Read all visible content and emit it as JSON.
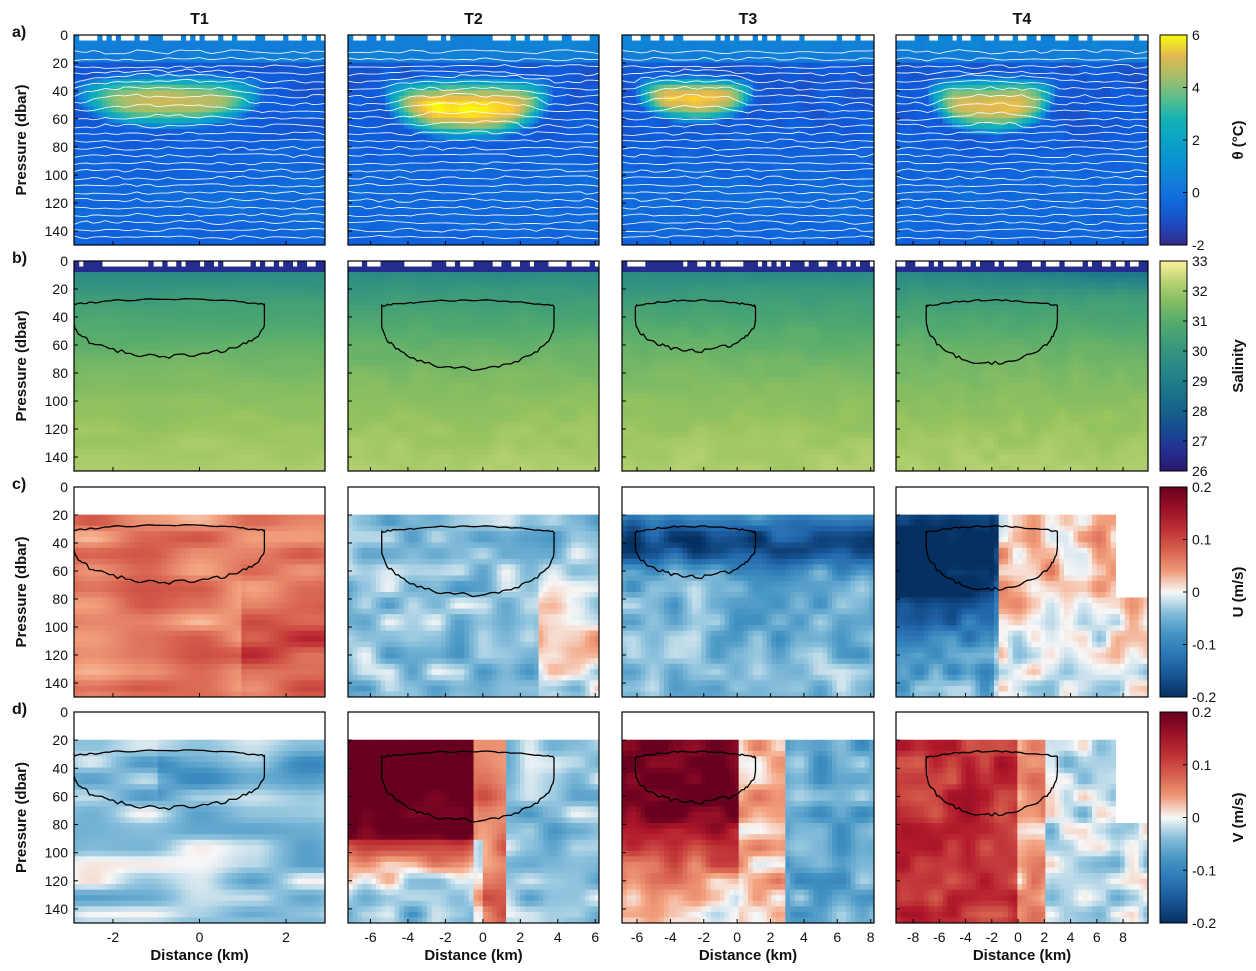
{
  "chart_data": {
    "type": "heatmap",
    "columns": [
      {
        "title": "T1",
        "xticks": [
          -2,
          0,
          2
        ],
        "xlim": [
          -2.9,
          2.9
        ]
      },
      {
        "title": "T2",
        "xticks": [
          -6,
          -4,
          -2,
          0,
          2,
          4,
          6
        ],
        "xlim": [
          -7.2,
          6.2
        ]
      },
      {
        "title": "T3",
        "xticks": [
          -6,
          -4,
          -2,
          0,
          2,
          4,
          6,
          8
        ],
        "xlim": [
          -6.9,
          8.2
        ]
      },
      {
        "title": "T4",
        "xticks": [
          -8,
          -6,
          -4,
          -2,
          0,
          2,
          4,
          6,
          8
        ],
        "xlim": [
          -9.3,
          9.9
        ]
      }
    ],
    "rows": [
      {
        "label": "a)",
        "ylabel": "Pressure (dbar)",
        "colorbar_label": "θ (°C)",
        "colormap": "parula",
        "clim": [
          -2,
          6
        ],
        "cticks": [
          "6",
          "4",
          "2",
          "0",
          "-2"
        ]
      },
      {
        "label": "b)",
        "ylabel": "Pressure (dbar)",
        "colorbar_label": "Salinity",
        "colormap": "haline",
        "clim": [
          26,
          33
        ],
        "cticks": [
          "33",
          "32",
          "31",
          "30",
          "29",
          "28",
          "27",
          "26"
        ]
      },
      {
        "label": "c)",
        "ylabel": "Pressure (dbar)",
        "colorbar_label": "U (m/s)",
        "colormap": "RdBu",
        "clim": [
          -0.2,
          0.2
        ],
        "cticks": [
          "0.2",
          "0.1",
          "0",
          "-0.1",
          "-0.2"
        ]
      },
      {
        "label": "d)",
        "ylabel": "Pressure (dbar)",
        "colorbar_label": "V (m/s)",
        "colormap": "RdBu",
        "clim": [
          -0.2,
          0.2
        ],
        "cticks": [
          "0.2",
          "0.1",
          "0",
          "-0.1",
          "-0.2"
        ]
      }
    ],
    "yticks": [
      0,
      20,
      40,
      60,
      80,
      100,
      120,
      140
    ],
    "ylim": [
      0,
      150
    ],
    "xlabel": "Distance (km)",
    "warm_layer": [
      {
        "center_x": -0.7,
        "center_p": 45,
        "half_width": 2.2,
        "top_p": 27,
        "bottom_p": 68,
        "max_theta": 4.6
      },
      {
        "center_x": -0.8,
        "center_p": 45,
        "half_width": 4.6,
        "top_p": 28,
        "bottom_p": 77,
        "max_theta": 5.6
      },
      {
        "center_x": -2.5,
        "center_p": 42,
        "half_width": 3.6,
        "top_p": 28,
        "bottom_p": 64,
        "max_theta": 5.2
      },
      {
        "center_x": -2.0,
        "center_p": 42,
        "half_width": 5.0,
        "top_p": 28,
        "bottom_p": 73,
        "max_theta": 5.0
      }
    ],
    "velocity_summary": {
      "U": [
        {
          "column": "T1",
          "dominant": 0.08
        },
        {
          "column": "T2",
          "dominant": -0.03
        },
        {
          "column": "T3",
          "dominant": -0.14
        },
        {
          "column": "T4",
          "dominant": -0.16
        }
      ],
      "V": [
        {
          "column": "T1",
          "dominant": -0.05
        },
        {
          "column": "T2",
          "dominant": 0.2
        },
        {
          "column": "T3",
          "dominant": 0.2
        },
        {
          "column": "T4",
          "dominant": 0.1
        }
      ]
    }
  }
}
